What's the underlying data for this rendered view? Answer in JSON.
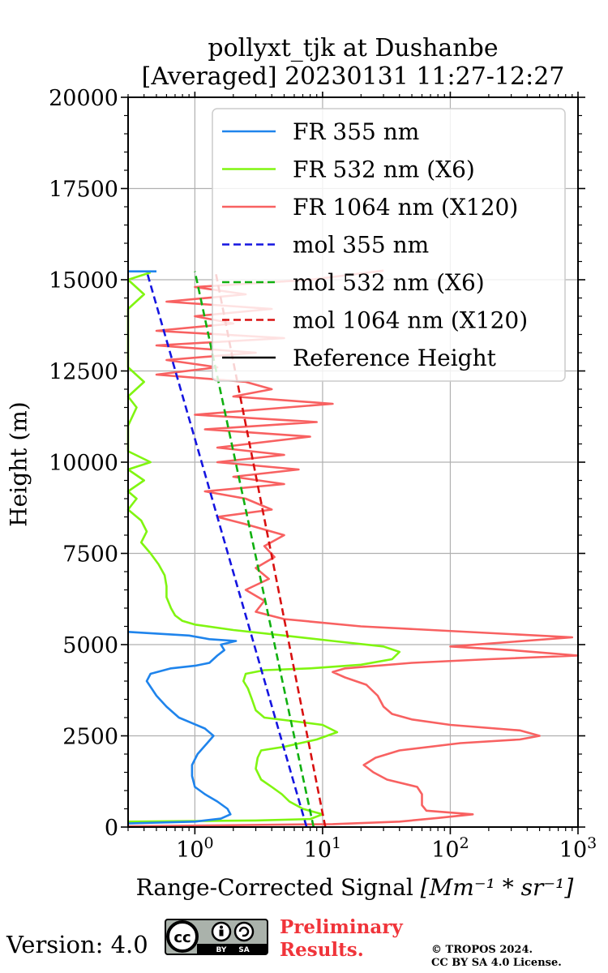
{
  "title_line1": "pollyxt_tjk at Dushanbe",
  "title_line2": "[Averaged] 20230131 11:27-12:27",
  "footer": {
    "version": "Version: 4.0",
    "cc_badge_left": "cc",
    "cc_badge_by": "BY",
    "cc_badge_sa": "SA",
    "preliminary_line1": "Preliminary",
    "preliminary_line2": "Results.",
    "copyright_line1": "© TROPOS 2024.",
    "copyright_line2": "CC BY SA 4.0 License."
  },
  "chart_data": {
    "type": "line",
    "title": "pollyxt_tjk at Dushanbe [Averaged] 20230131 11:27-12:27",
    "xlabel": "Range-Corrected Signal [Mm^-1 * sr^-1]",
    "xlabel_main": "Range-Corrected Signal ",
    "xlabel_unit": "[Mm⁻¹ * sr⁻¹]",
    "ylabel": "Height (m)",
    "xscale": "log",
    "xlim": [
      0.3,
      1000
    ],
    "ylim": [
      0,
      20000
    ],
    "grid": true,
    "legend_position": "top-right",
    "x_ticks": [
      {
        "value": 1,
        "label": "10⁰"
      },
      {
        "value": 10,
        "label": "10¹"
      },
      {
        "value": 100,
        "label": "10²"
      },
      {
        "value": 1000,
        "label": "10³"
      }
    ],
    "y_ticks": [
      0,
      2500,
      5000,
      7500,
      10000,
      12500,
      15000,
      17500,
      20000
    ],
    "series": [
      {
        "name": "FR 355 nm",
        "color": "#1f84ec",
        "style": "solid",
        "points": [
          [
            0.3,
            100
          ],
          [
            1.0,
            150
          ],
          [
            1.6,
            230
          ],
          [
            1.9,
            350
          ],
          [
            1.8,
            500
          ],
          [
            1.5,
            700
          ],
          [
            1.2,
            900
          ],
          [
            1.0,
            1100
          ],
          [
            0.95,
            1400
          ],
          [
            0.95,
            1700
          ],
          [
            1.05,
            2000
          ],
          [
            1.25,
            2300
          ],
          [
            1.4,
            2500
          ],
          [
            1.2,
            2700
          ],
          [
            0.95,
            2850
          ],
          [
            0.75,
            3000
          ],
          [
            0.6,
            3300
          ],
          [
            0.5,
            3600
          ],
          [
            0.42,
            4000
          ],
          [
            0.45,
            4200
          ],
          [
            0.65,
            4350
          ],
          [
            1.0,
            4420
          ],
          [
            1.3,
            4500
          ],
          [
            1.5,
            4700
          ],
          [
            1.7,
            4850
          ],
          [
            1.6,
            5000
          ],
          [
            2.1,
            5100
          ],
          [
            1.3,
            5150
          ],
          [
            0.9,
            5250
          ],
          [
            0.3,
            5350
          ]
        ]
      },
      {
        "name": "FR 355 nm (top)",
        "color": "#1f84ec",
        "style": "solid",
        "points": [
          [
            0.3,
            15230
          ],
          [
            0.5,
            15230
          ]
        ]
      },
      {
        "name": "FR 532 nm (X6)",
        "color": "#80f511",
        "style": "solid",
        "points": [
          [
            0.3,
            150
          ],
          [
            3.0,
            180
          ],
          [
            8.0,
            220
          ],
          [
            10.0,
            350
          ],
          [
            7.0,
            500
          ],
          [
            5.5,
            700
          ],
          [
            4.8,
            900
          ],
          [
            4.0,
            1100
          ],
          [
            3.3,
            1300
          ],
          [
            3.0,
            1600
          ],
          [
            3.1,
            1900
          ],
          [
            3.3,
            2100
          ],
          [
            5.0,
            2200
          ],
          [
            9.0,
            2400
          ],
          [
            13.0,
            2600
          ],
          [
            10.0,
            2800
          ],
          [
            6.0,
            2900
          ],
          [
            3.5,
            3000
          ],
          [
            3.0,
            3200
          ],
          [
            2.8,
            3500
          ],
          [
            2.6,
            3800
          ],
          [
            2.4,
            4000
          ],
          [
            2.5,
            4200
          ],
          [
            3.5,
            4300
          ],
          [
            8.0,
            4350
          ],
          [
            20.0,
            4450
          ],
          [
            35.0,
            4600
          ],
          [
            40.0,
            4800
          ],
          [
            30.0,
            4950
          ],
          [
            12.0,
            5100
          ],
          [
            5.0,
            5250
          ],
          [
            2.0,
            5400
          ],
          [
            1.0,
            5550
          ],
          [
            0.8,
            5650
          ],
          [
            0.7,
            5800
          ],
          [
            0.65,
            6000
          ],
          [
            0.6,
            6300
          ],
          [
            0.6,
            6600
          ],
          [
            0.58,
            6900
          ],
          [
            0.52,
            7200
          ],
          [
            0.45,
            7500
          ],
          [
            0.38,
            7800
          ],
          [
            0.42,
            8100
          ],
          [
            0.38,
            8400
          ],
          [
            0.3,
            8700
          ],
          [
            0.35,
            9000
          ],
          [
            0.3,
            9200
          ],
          [
            0.4,
            9500
          ],
          [
            0.3,
            9800
          ],
          [
            0.45,
            10000
          ],
          [
            0.3,
            10300
          ],
          [
            0.3,
            11000
          ],
          [
            0.35,
            11500
          ],
          [
            0.3,
            11800
          ],
          [
            0.4,
            12200
          ],
          [
            0.3,
            12600
          ],
          [
            0.3,
            14200
          ],
          [
            0.4,
            14600
          ],
          [
            0.3,
            15000
          ],
          [
            0.45,
            15200
          ]
        ]
      },
      {
        "name": "FR 1064 nm (X120)",
        "color": "#f86161",
        "style": "solid",
        "points": [
          [
            0.3,
            20
          ],
          [
            12.0,
            80
          ],
          [
            40.0,
            150
          ],
          [
            80.0,
            250
          ],
          [
            150.0,
            350
          ],
          [
            65.0,
            450
          ],
          [
            60.0,
            600
          ],
          [
            60.0,
            900
          ],
          [
            55.0,
            1100
          ],
          [
            32.0,
            1300
          ],
          [
            25.0,
            1500
          ],
          [
            21.0,
            1700
          ],
          [
            26.0,
            1900
          ],
          [
            40.0,
            2100
          ],
          [
            120.0,
            2300
          ],
          [
            350.0,
            2400
          ],
          [
            500.0,
            2500
          ],
          [
            350.0,
            2650
          ],
          [
            100.0,
            2800
          ],
          [
            50.0,
            2950
          ],
          [
            35.0,
            3100
          ],
          [
            30.0,
            3300
          ],
          [
            27.0,
            3600
          ],
          [
            22.0,
            3900
          ],
          [
            15.0,
            4100
          ],
          [
            12.0,
            4250
          ],
          [
            15.0,
            4350
          ],
          [
            50.0,
            4500
          ],
          [
            200.0,
            4600
          ],
          [
            1000.0,
            4700
          ],
          [
            300.0,
            4850
          ],
          [
            100.0,
            4950
          ],
          [
            900.0,
            5200
          ],
          [
            20.0,
            5500
          ],
          [
            5.0,
            5700
          ],
          [
            3.0,
            5900
          ],
          [
            3.5,
            6200
          ],
          [
            2.5,
            6500
          ],
          [
            3.8,
            6800
          ],
          [
            3.0,
            7100
          ],
          [
            4.2,
            7400
          ],
          [
            3.5,
            7700
          ],
          [
            5.0,
            8000
          ],
          [
            2.5,
            8300
          ],
          [
            1.5,
            8500
          ],
          [
            4.0,
            8700
          ],
          [
            2.5,
            9000
          ],
          [
            1.2,
            9200
          ],
          [
            5.0,
            9400
          ],
          [
            2.0,
            9600
          ],
          [
            6.5,
            9800
          ],
          [
            1.5,
            10000
          ],
          [
            5.0,
            10200
          ],
          [
            1.5,
            10400
          ],
          [
            8.0,
            10700
          ],
          [
            1.2,
            10900
          ],
          [
            9.0,
            11100
          ],
          [
            1.0,
            11300
          ],
          [
            12.0,
            11600
          ],
          [
            2.0,
            11800
          ],
          [
            4.0,
            12000
          ],
          [
            2.5,
            12200
          ],
          [
            0.5,
            12400
          ],
          [
            1.5,
            12600
          ],
          [
            0.6,
            12800
          ],
          [
            3.0,
            13000
          ],
          [
            0.5,
            13200
          ],
          [
            5.0,
            13400
          ],
          [
            0.5,
            13600
          ],
          [
            2.0,
            13800
          ],
          [
            1.0,
            14000
          ],
          [
            4.0,
            14200
          ],
          [
            0.6,
            14400
          ],
          [
            2.5,
            14600
          ],
          [
            1.0,
            14800
          ],
          [
            8.0,
            15000
          ],
          [
            30.0,
            15250
          ]
        ]
      },
      {
        "name": "mol 355 nm",
        "color": "#1515e0",
        "style": "dashed",
        "points": [
          [
            7.5,
            0
          ],
          [
            0.42,
            15230
          ]
        ]
      },
      {
        "name": "mol 532 nm (X6)",
        "color": "#10b010",
        "style": "dashed",
        "points": [
          [
            8.5,
            0
          ],
          [
            1.0,
            15230
          ]
        ]
      },
      {
        "name": "mol 1064 nm (X120)",
        "color": "#d81010",
        "style": "dashed",
        "points": [
          [
            10.5,
            0
          ],
          [
            1.45,
            15230
          ]
        ]
      }
    ],
    "legend": [
      {
        "label": "FR 355 nm",
        "color": "#1f84ec",
        "style": "solid"
      },
      {
        "label": "FR 532 nm (X6)",
        "color": "#80f511",
        "style": "solid"
      },
      {
        "label": "FR 1064 nm (X120)",
        "color": "#f86161",
        "style": "solid"
      },
      {
        "label": "mol 355 nm",
        "color": "#1515e0",
        "style": "dashed"
      },
      {
        "label": "mol 532 nm (X6)",
        "color": "#10b010",
        "style": "dashed"
      },
      {
        "label": "mol 1064 nm (X120)",
        "color": "#d81010",
        "style": "dashed"
      },
      {
        "label": "Reference Height",
        "color": "#000000",
        "style": "solid"
      }
    ]
  }
}
